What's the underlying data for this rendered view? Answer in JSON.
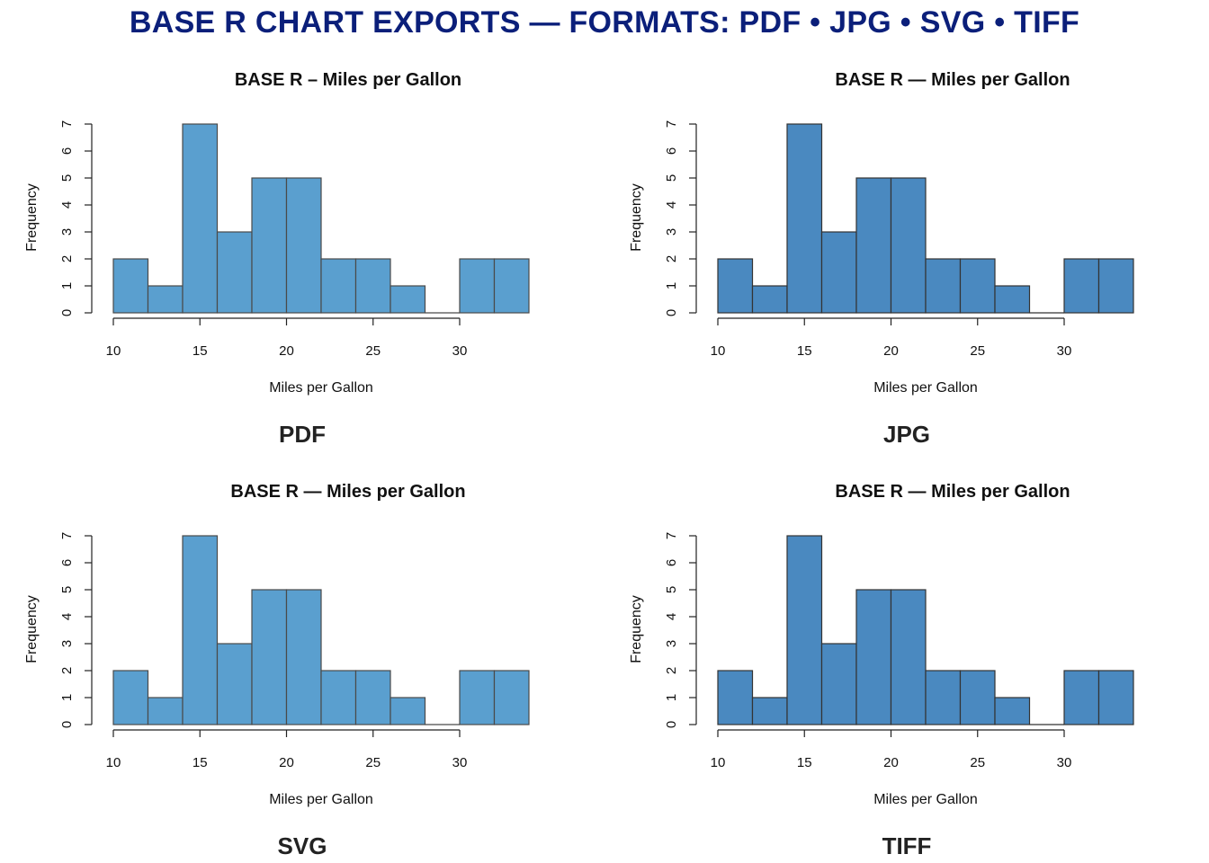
{
  "page": {
    "title": "BASE R CHART EXPORTS — FORMATS: PDF • JPG • SVG • TIFF",
    "title_color": "#0b1f7a"
  },
  "chart_data": [
    {
      "type": "bar",
      "title": "BASE R – Miles per Gallon",
      "xlabel": "Miles per Gallon",
      "ylabel": "Frequency",
      "format_label": "PDF",
      "bin_edges": [
        10,
        12,
        14,
        16,
        18,
        20,
        22,
        24,
        26,
        28,
        30,
        32,
        34
      ],
      "values": [
        2,
        1,
        7,
        3,
        5,
        5,
        2,
        2,
        1,
        0,
        2,
        2
      ],
      "xticks": [
        10,
        15,
        20,
        25,
        30
      ],
      "yticks": [
        0,
        1,
        2,
        3,
        4,
        5,
        6,
        7
      ],
      "xlim": [
        10,
        34
      ],
      "ylim": [
        0,
        7
      ],
      "bar_color": "#5a9fcf",
      "bar_border": "#4a4a4a"
    },
    {
      "type": "bar",
      "title": "BASE R — Miles per Gallon",
      "xlabel": "Miles per Gallon",
      "ylabel": "Frequency",
      "format_label": "JPG",
      "bin_edges": [
        10,
        12,
        14,
        16,
        18,
        20,
        22,
        24,
        26,
        28,
        30,
        32,
        34
      ],
      "values": [
        2,
        1,
        7,
        3,
        5,
        5,
        2,
        2,
        1,
        0,
        2,
        2
      ],
      "xticks": [
        10,
        15,
        20,
        25,
        30
      ],
      "yticks": [
        0,
        1,
        2,
        3,
        4,
        5,
        6,
        7
      ],
      "xlim": [
        10,
        34
      ],
      "ylim": [
        0,
        7
      ],
      "bar_color": "#4a89c0",
      "bar_border": "#333333"
    },
    {
      "type": "bar",
      "title": "BASE R — Miles per Gallon",
      "xlabel": "Miles per Gallon",
      "ylabel": "Frequency",
      "format_label": "SVG",
      "bin_edges": [
        10,
        12,
        14,
        16,
        18,
        20,
        22,
        24,
        26,
        28,
        30,
        32,
        34
      ],
      "values": [
        2,
        1,
        7,
        3,
        5,
        5,
        2,
        2,
        1,
        0,
        2,
        2
      ],
      "xticks": [
        10,
        15,
        20,
        25,
        30
      ],
      "yticks": [
        0,
        1,
        2,
        3,
        4,
        5,
        6,
        7
      ],
      "xlim": [
        10,
        34
      ],
      "ylim": [
        0,
        7
      ],
      "bar_color": "#5a9fcf",
      "bar_border": "#4a4a4a"
    },
    {
      "type": "bar",
      "title": "BASE R — Miles per Gallon",
      "xlabel": "Miles per Gallon",
      "ylabel": "Frequency",
      "format_label": "TIFF",
      "bin_edges": [
        10,
        12,
        14,
        16,
        18,
        20,
        22,
        24,
        26,
        28,
        30,
        32,
        34
      ],
      "values": [
        2,
        1,
        7,
        3,
        5,
        5,
        2,
        2,
        1,
        0,
        2,
        2
      ],
      "xticks": [
        10,
        15,
        20,
        25,
        30
      ],
      "yticks": [
        0,
        1,
        2,
        3,
        4,
        5,
        6,
        7
      ],
      "xlim": [
        10,
        34
      ],
      "ylim": [
        0,
        7
      ],
      "bar_color": "#4a89c0",
      "bar_border": "#333333"
    }
  ]
}
